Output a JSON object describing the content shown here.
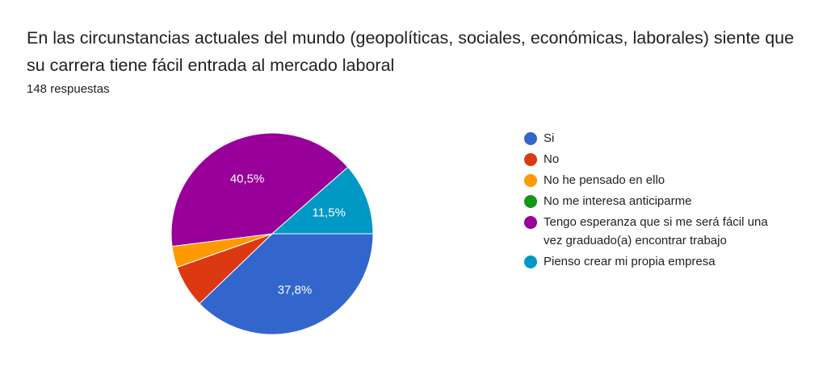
{
  "header": {
    "title": "En las circunstancias actuales del mundo (geopolíticas, sociales, económicas, laborales) siente que su carrera tiene fácil entrada al mercado laboral",
    "responses": "148 respuestas"
  },
  "chart_data": {
    "type": "pie",
    "title": "En las circunstancias actuales del mundo (geopolíticas, sociales, económicas, laborales) siente que su carrera tiene fácil entrada al mercado laboral",
    "legend_position": "right",
    "slices": [
      {
        "label": "Si",
        "value": 37.8,
        "color": "#3366cc",
        "data_label": "37,8%"
      },
      {
        "label": "No",
        "value": 6.8,
        "color": "#dc3912",
        "data_label": ""
      },
      {
        "label": "No he pensado en ello",
        "value": 3.4,
        "color": "#ff9900",
        "data_label": ""
      },
      {
        "label": "No me interesa anticiparme",
        "value": 0,
        "color": "#109618",
        "data_label": ""
      },
      {
        "label": "Tengo esperanza que si me será fácil una vez graduado(a) encontrar trabajo",
        "value": 40.5,
        "color": "#990099",
        "data_label": "40,5%"
      },
      {
        "label": "Pienso crear mi propia empresa",
        "value": 11.5,
        "color": "#0099c6",
        "data_label": "11,5%"
      }
    ]
  }
}
